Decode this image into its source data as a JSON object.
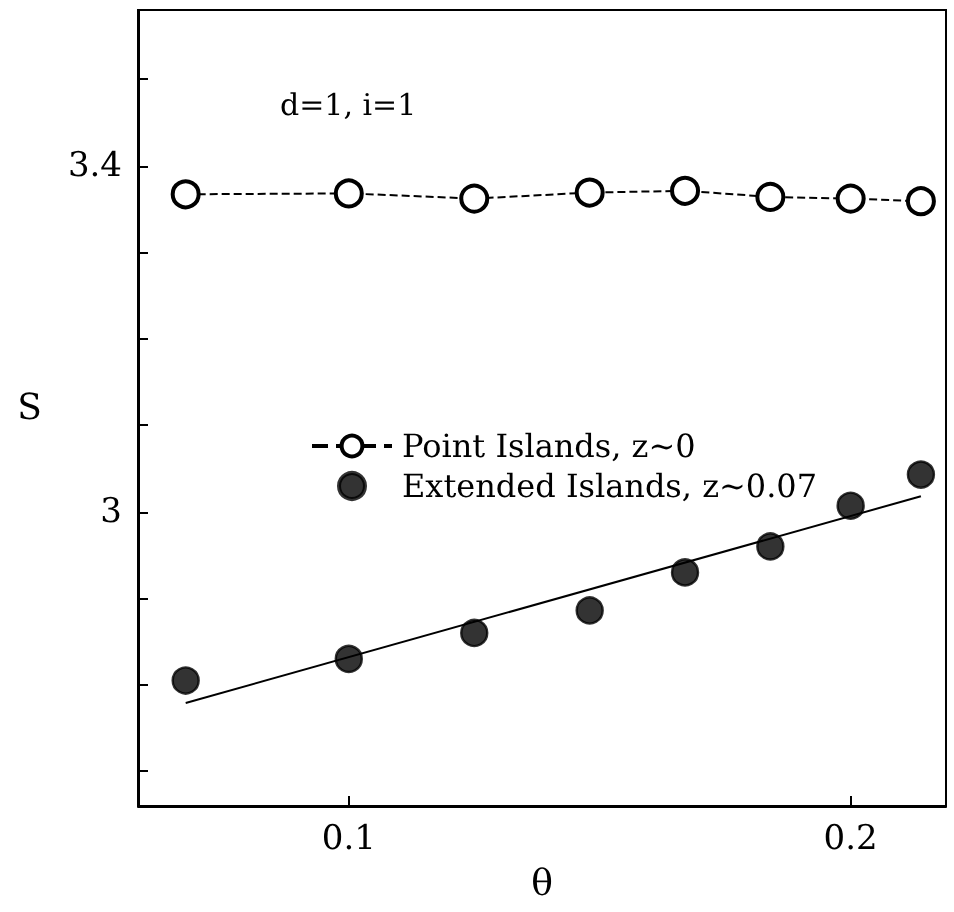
{
  "chart_data": {
    "type": "line",
    "xlabel": "θ",
    "ylabel": "S",
    "annotations": [
      "d=1, i=1"
    ],
    "xlim": [
      0.058,
      0.219
    ],
    "xticks": [
      0.1,
      0.2
    ],
    "ylim": [
      2.66,
      3.58
    ],
    "yticks": [
      {
        "value": 2.7,
        "label": null
      },
      {
        "value": 2.8,
        "label": null
      },
      {
        "value": 2.9,
        "label": null
      },
      3,
      {
        "value": 3.1,
        "label": null
      },
      {
        "value": 3.2,
        "label": null
      },
      {
        "value": 3.3,
        "label": null
      },
      3.4,
      {
        "value": 3.5,
        "label": null
      }
    ],
    "grid": false,
    "legend": "left",
    "series": [
      {
        "name": "Point Islands, z~0",
        "color": "#000000",
        "marker": "circle",
        "line_style": "dashed",
        "x": [
          0.0675,
          0.1,
          0.125,
          0.148,
          0.167,
          0.184,
          0.2,
          0.214
        ],
        "values": [
          3.367,
          3.368,
          3.362,
          3.369,
          3.371,
          3.364,
          3.362,
          3.359
        ]
      },
      {
        "name": "Extended Islands, z~0.07",
        "type": "scatter",
        "color": "#000000",
        "marker": "circle",
        "x": [
          0.0675,
          0.1,
          0.125,
          0.148,
          0.167,
          0.184,
          0.2,
          0.214
        ],
        "values": [
          2.805,
          2.83,
          2.86,
          2.886,
          2.93,
          2.96,
          3.007,
          3.043
        ]
      },
      {
        "color": "#000000",
        "marker": "none",
        "line_style": "solid",
        "x": [
          0.0675,
          0.214
        ],
        "values": [
          2.779,
          3.018
        ]
      }
    ]
  }
}
